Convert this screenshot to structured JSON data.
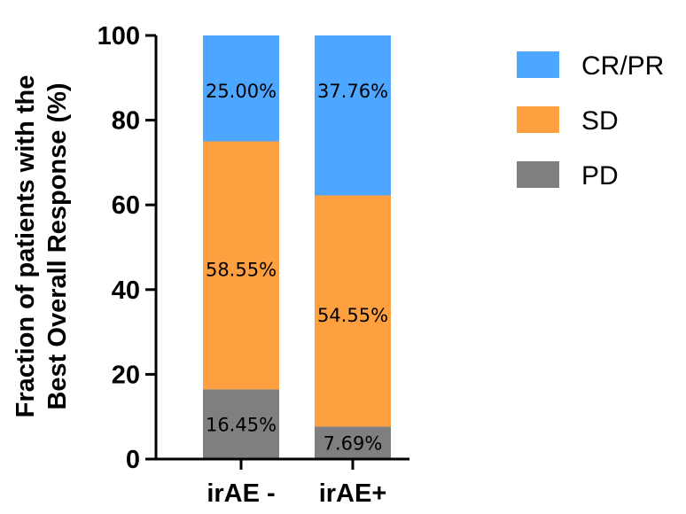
{
  "chart_data": {
    "type": "bar",
    "stacked": true,
    "categories": [
      "irAE -",
      "irAE+"
    ],
    "series": [
      {
        "name": "PD",
        "values": [
          16.45,
          7.69
        ],
        "labels": [
          "16.45%",
          "7.69%"
        ],
        "color": "#7f7f7f"
      },
      {
        "name": "SD",
        "values": [
          58.55,
          54.55
        ],
        "labels": [
          "58.55%",
          "54.55%"
        ],
        "color": "#ffa040"
      },
      {
        "name": "CR/PR",
        "values": [
          25.0,
          37.76
        ],
        "labels": [
          "25.00%",
          "37.76%"
        ],
        "color": "#4da6ff"
      }
    ],
    "legend_order": [
      "CR/PR",
      "SD",
      "PD"
    ],
    "ylabel_lines": [
      "Fraction of patients with the",
      "Best Overall Response (%)"
    ],
    "xlabel": "",
    "ylim": [
      0,
      100
    ],
    "yticks": [
      0,
      20,
      40,
      60,
      80,
      100
    ],
    "grid": false,
    "legend_position": "right"
  }
}
